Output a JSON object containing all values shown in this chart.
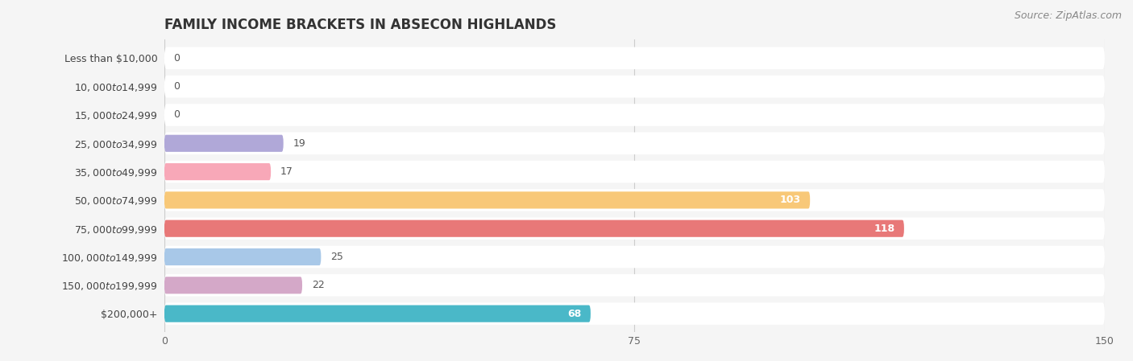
{
  "title": "FAMILY INCOME BRACKETS IN ABSECON HIGHLANDS",
  "source": "Source: ZipAtlas.com",
  "categories": [
    "Less than $10,000",
    "$10,000 to $14,999",
    "$15,000 to $24,999",
    "$25,000 to $34,999",
    "$35,000 to $49,999",
    "$50,000 to $74,999",
    "$75,000 to $99,999",
    "$100,000 to $149,999",
    "$150,000 to $199,999",
    "$200,000+"
  ],
  "values": [
    0,
    0,
    0,
    19,
    17,
    103,
    118,
    25,
    22,
    68
  ],
  "bar_colors": [
    "#a8c8e8",
    "#d4a8c8",
    "#78c8b8",
    "#b0a8d8",
    "#f8a8b8",
    "#f8c878",
    "#e87878",
    "#a8c8e8",
    "#d4a8c8",
    "#4ab8c8"
  ],
  "background_color": "#f5f5f5",
  "xlim": [
    0,
    150
  ],
  "xticks": [
    0,
    75,
    150
  ],
  "title_fontsize": 12,
  "label_fontsize": 9,
  "tick_fontsize": 9,
  "source_fontsize": 9,
  "value_fontsize": 9
}
